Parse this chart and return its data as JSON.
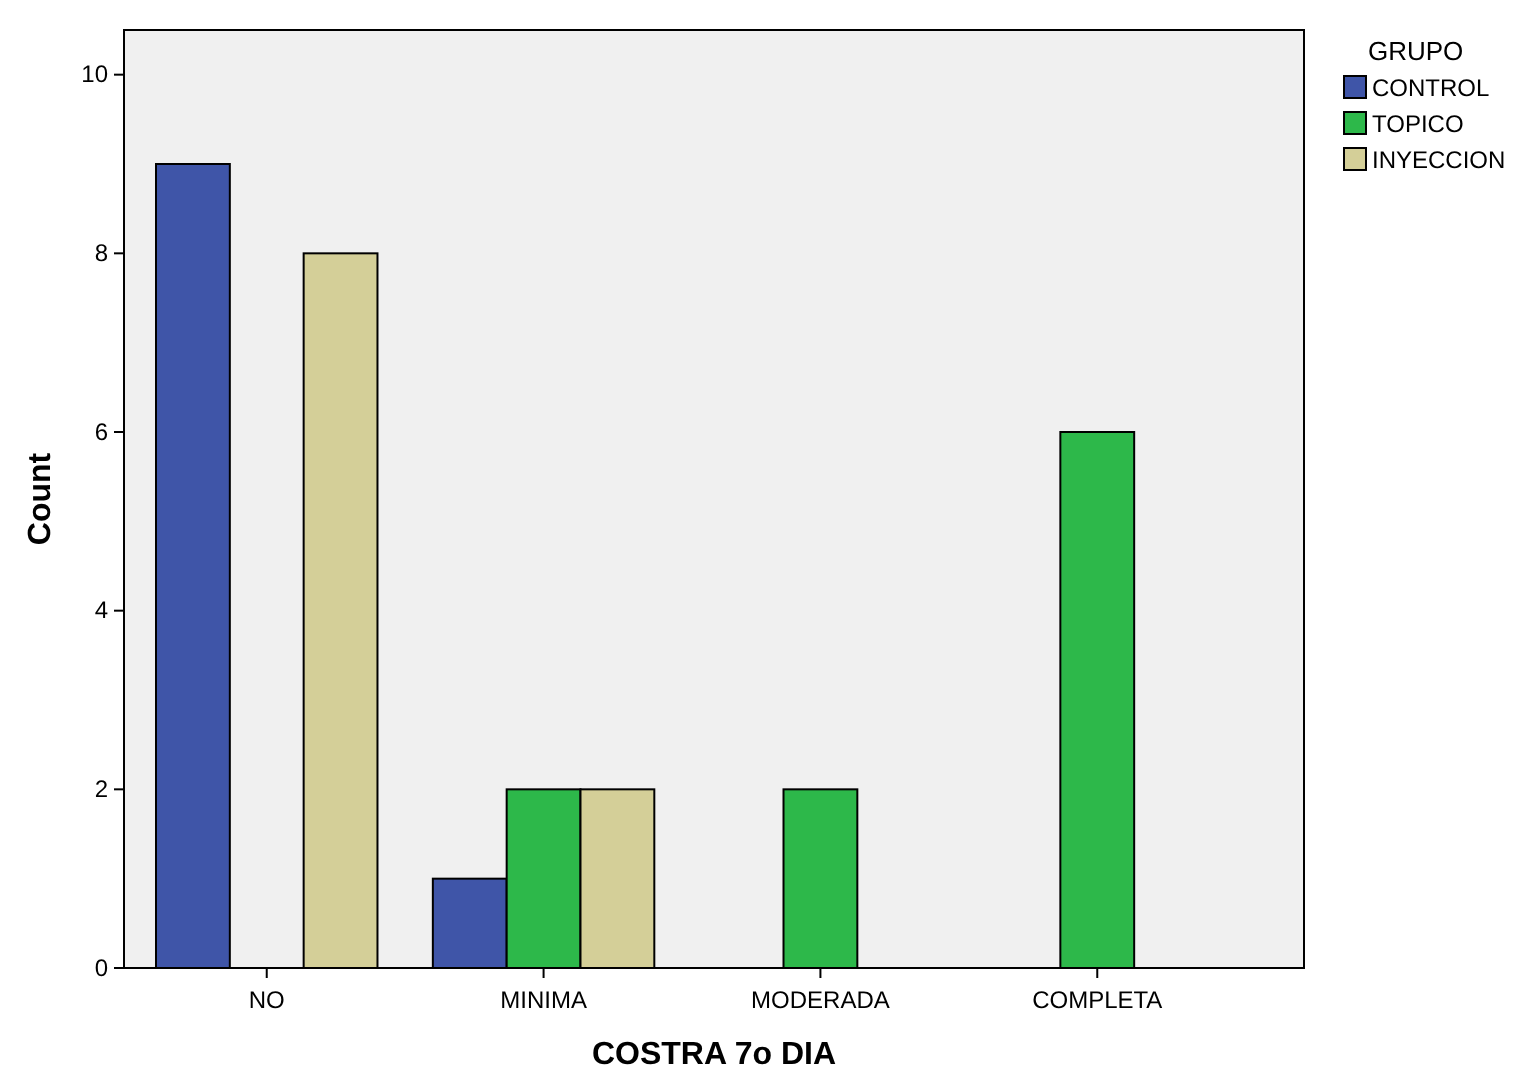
{
  "chart_data": {
    "type": "bar",
    "xlabel": "COSTRA 7o DIA",
    "ylabel": "Count",
    "legend_title": "GRUPO",
    "categories": [
      "NO",
      "MINIMA",
      "MODERADA",
      "COMPLETA"
    ],
    "series": [
      {
        "name": "CONTROL",
        "color": "#3f55a8",
        "values": [
          9,
          1,
          null,
          null
        ]
      },
      {
        "name": "TOPICO",
        "color": "#2db84a",
        "values": [
          null,
          2,
          2,
          6
        ]
      },
      {
        "name": "INYECCION",
        "color": "#d4cf98",
        "values": [
          8,
          2,
          null,
          null
        ]
      }
    ],
    "ylim": [
      0,
      10.5
    ],
    "yticks": [
      0,
      2,
      4,
      6,
      8,
      10
    ],
    "grid": false,
    "legend": "top right"
  }
}
